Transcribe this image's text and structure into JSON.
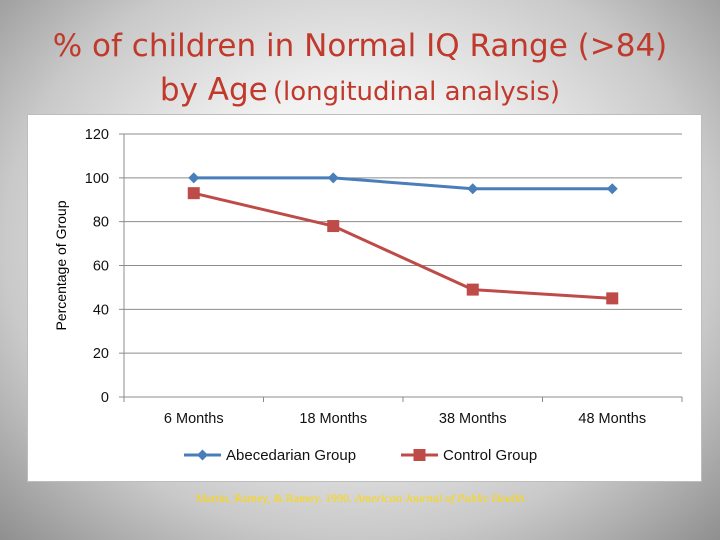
{
  "slide": {
    "title_line1": "% of children in Normal IQ Range (>84)",
    "title_line2_main": "by Age",
    "title_line2_sub": "(longitudinal analysis)",
    "citation_authors": "Martin, Ramey, & Ramey. 1990.",
    "citation_journal": "American Journal of Public Health"
  },
  "colors": {
    "title": "#c0392b",
    "series_abecedarian": "#4a7ebb",
    "series_control": "#be4b48",
    "citation": "#ffd700"
  },
  "chart_data": {
    "type": "line",
    "title": "",
    "xlabel": "",
    "ylabel": "Percentage of Group",
    "categories": [
      "6 Months",
      "18 Months",
      "38 Months",
      "48 Months"
    ],
    "ylim": [
      0,
      120
    ],
    "yticks": [
      0,
      20,
      40,
      60,
      80,
      100,
      120
    ],
    "grid": true,
    "legend_position": "bottom",
    "series": [
      {
        "name": "Abecedarian Group",
        "values": [
          100,
          100,
          95,
          95
        ],
        "marker": "diamond",
        "color": "#4a7ebb"
      },
      {
        "name": "Control Group",
        "values": [
          93,
          78,
          49,
          45
        ],
        "marker": "square",
        "color": "#be4b48"
      }
    ]
  }
}
